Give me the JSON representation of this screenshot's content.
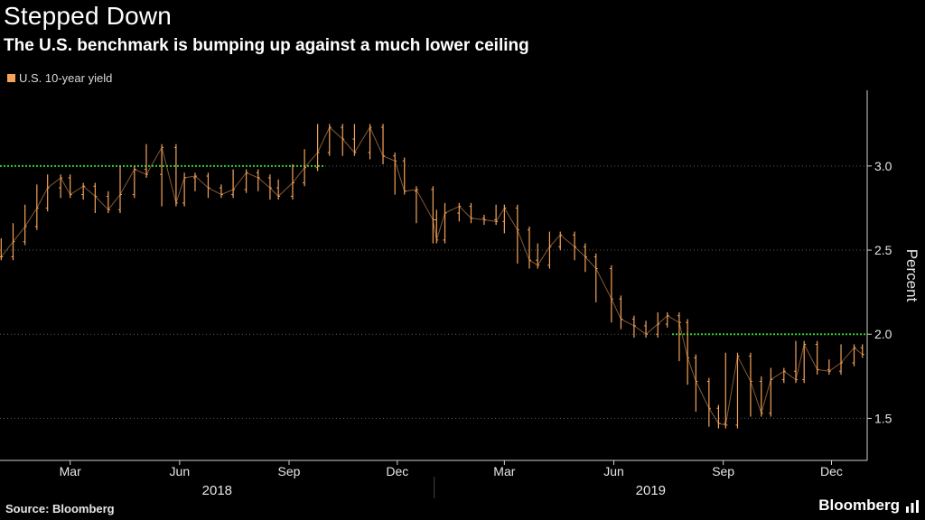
{
  "title": "Stepped Down",
  "subtitle": "The U.S. benchmark is bumping up against a much lower ceiling",
  "source": "Source: Bloomberg",
  "brand": "Bloomberg",
  "colors": {
    "series": "#f5a35b",
    "ceiling": "#33cc33",
    "grid": "#5a5a5a",
    "axis": "#cfcfcf"
  },
  "chart_data": {
    "type": "line",
    "style": "ohlc-bars",
    "ylabel": "Percent",
    "ylim": [
      1.25,
      3.45
    ],
    "yticks": [
      1.5,
      2.0,
      2.5,
      3.0
    ],
    "ytick_labels": [
      "1.5",
      "2.0",
      "2.5",
      "3.0"
    ],
    "xlim": [
      "2018-01-01",
      "2019-12-31"
    ],
    "xticks": [
      {
        "date": "2018-03-01",
        "label": "Mar"
      },
      {
        "date": "2018-06-01",
        "label": "Jun"
      },
      {
        "date": "2018-09-01",
        "label": "Sep"
      },
      {
        "date": "2018-12-01",
        "label": "Dec"
      },
      {
        "date": "2019-03-01",
        "label": "Mar"
      },
      {
        "date": "2019-06-01",
        "label": "Jun"
      },
      {
        "date": "2019-09-01",
        "label": "Sep"
      },
      {
        "date": "2019-12-01",
        "label": "Dec"
      }
    ],
    "year_labels": [
      {
        "label": "2018",
        "from": "2018-01-01",
        "to": "2019-01-01"
      },
      {
        "label": "2019",
        "from": "2019-01-01",
        "to": "2019-12-31"
      }
    ],
    "grid": "horizontal-dotted",
    "legend": "top-left",
    "series": [
      {
        "name": "U.S. 10-year yield",
        "points": [
          [
            "2018-01-02",
            2.46
          ],
          [
            "2018-01-12",
            2.55
          ],
          [
            "2018-01-22",
            2.64
          ],
          [
            "2018-02-01",
            2.75
          ],
          [
            "2018-02-10",
            2.87
          ],
          [
            "2018-02-21",
            2.93
          ],
          [
            "2018-03-01",
            2.83
          ],
          [
            "2018-03-12",
            2.88
          ],
          [
            "2018-03-22",
            2.82
          ],
          [
            "2018-04-02",
            2.74
          ],
          [
            "2018-04-12",
            2.83
          ],
          [
            "2018-04-24",
            2.98
          ],
          [
            "2018-05-04",
            2.95
          ],
          [
            "2018-05-17",
            3.11
          ],
          [
            "2018-05-29",
            2.78
          ],
          [
            "2018-06-05",
            2.93
          ],
          [
            "2018-06-14",
            2.94
          ],
          [
            "2018-06-25",
            2.87
          ],
          [
            "2018-07-06",
            2.83
          ],
          [
            "2018-07-16",
            2.86
          ],
          [
            "2018-07-27",
            2.96
          ],
          [
            "2018-08-06",
            2.93
          ],
          [
            "2018-08-16",
            2.87
          ],
          [
            "2018-08-23",
            2.82
          ],
          [
            "2018-09-04",
            2.9
          ],
          [
            "2018-09-14",
            2.99
          ],
          [
            "2018-09-25",
            3.08
          ],
          [
            "2018-10-05",
            3.23
          ],
          [
            "2018-10-16",
            3.16
          ],
          [
            "2018-10-26",
            3.08
          ],
          [
            "2018-11-08",
            3.23
          ],
          [
            "2018-11-19",
            3.06
          ],
          [
            "2018-11-29",
            3.03
          ],
          [
            "2018-12-07",
            2.85
          ],
          [
            "2018-12-17",
            2.86
          ],
          [
            "2018-12-31",
            2.68
          ],
          [
            "2019-01-03",
            2.56
          ],
          [
            "2019-01-10",
            2.72
          ],
          [
            "2019-01-22",
            2.76
          ],
          [
            "2019-02-01",
            2.69
          ],
          [
            "2019-02-12",
            2.68
          ],
          [
            "2019-02-22",
            2.67
          ],
          [
            "2019-03-01",
            2.75
          ],
          [
            "2019-03-12",
            2.62
          ],
          [
            "2019-03-22",
            2.44
          ],
          [
            "2019-03-29",
            2.41
          ],
          [
            "2019-04-08",
            2.52
          ],
          [
            "2019-04-17",
            2.59
          ],
          [
            "2019-04-29",
            2.52
          ],
          [
            "2019-05-08",
            2.46
          ],
          [
            "2019-05-17",
            2.39
          ],
          [
            "2019-05-30",
            2.21
          ],
          [
            "2019-06-07",
            2.09
          ],
          [
            "2019-06-18",
            2.05
          ],
          [
            "2019-06-28",
            2.0
          ],
          [
            "2019-07-08",
            2.06
          ],
          [
            "2019-07-16",
            2.11
          ],
          [
            "2019-07-26",
            2.07
          ],
          [
            "2019-08-02",
            1.86
          ],
          [
            "2019-08-09",
            1.72
          ],
          [
            "2019-08-20",
            1.56
          ],
          [
            "2019-08-28",
            1.47
          ],
          [
            "2019-09-03",
            1.46
          ],
          [
            "2019-09-13",
            1.87
          ],
          [
            "2019-09-24",
            1.72
          ],
          [
            "2019-10-03",
            1.53
          ],
          [
            "2019-10-11",
            1.73
          ],
          [
            "2019-10-22",
            1.78
          ],
          [
            "2019-11-01",
            1.73
          ],
          [
            "2019-11-08",
            1.94
          ],
          [
            "2019-11-19",
            1.79
          ],
          [
            "2019-11-29",
            1.78
          ],
          [
            "2019-12-09",
            1.83
          ],
          [
            "2019-12-20",
            1.92
          ],
          [
            "2019-12-27",
            1.88
          ]
        ]
      }
    ],
    "annotations": [
      {
        "type": "hline",
        "y": 3.0,
        "from": "2018-01-01",
        "to": "2018-10-01",
        "style": "dotted-green"
      },
      {
        "type": "hline",
        "y": 2.0,
        "from": "2019-07-20",
        "to": "2019-12-31",
        "style": "dotted-green"
      }
    ]
  }
}
